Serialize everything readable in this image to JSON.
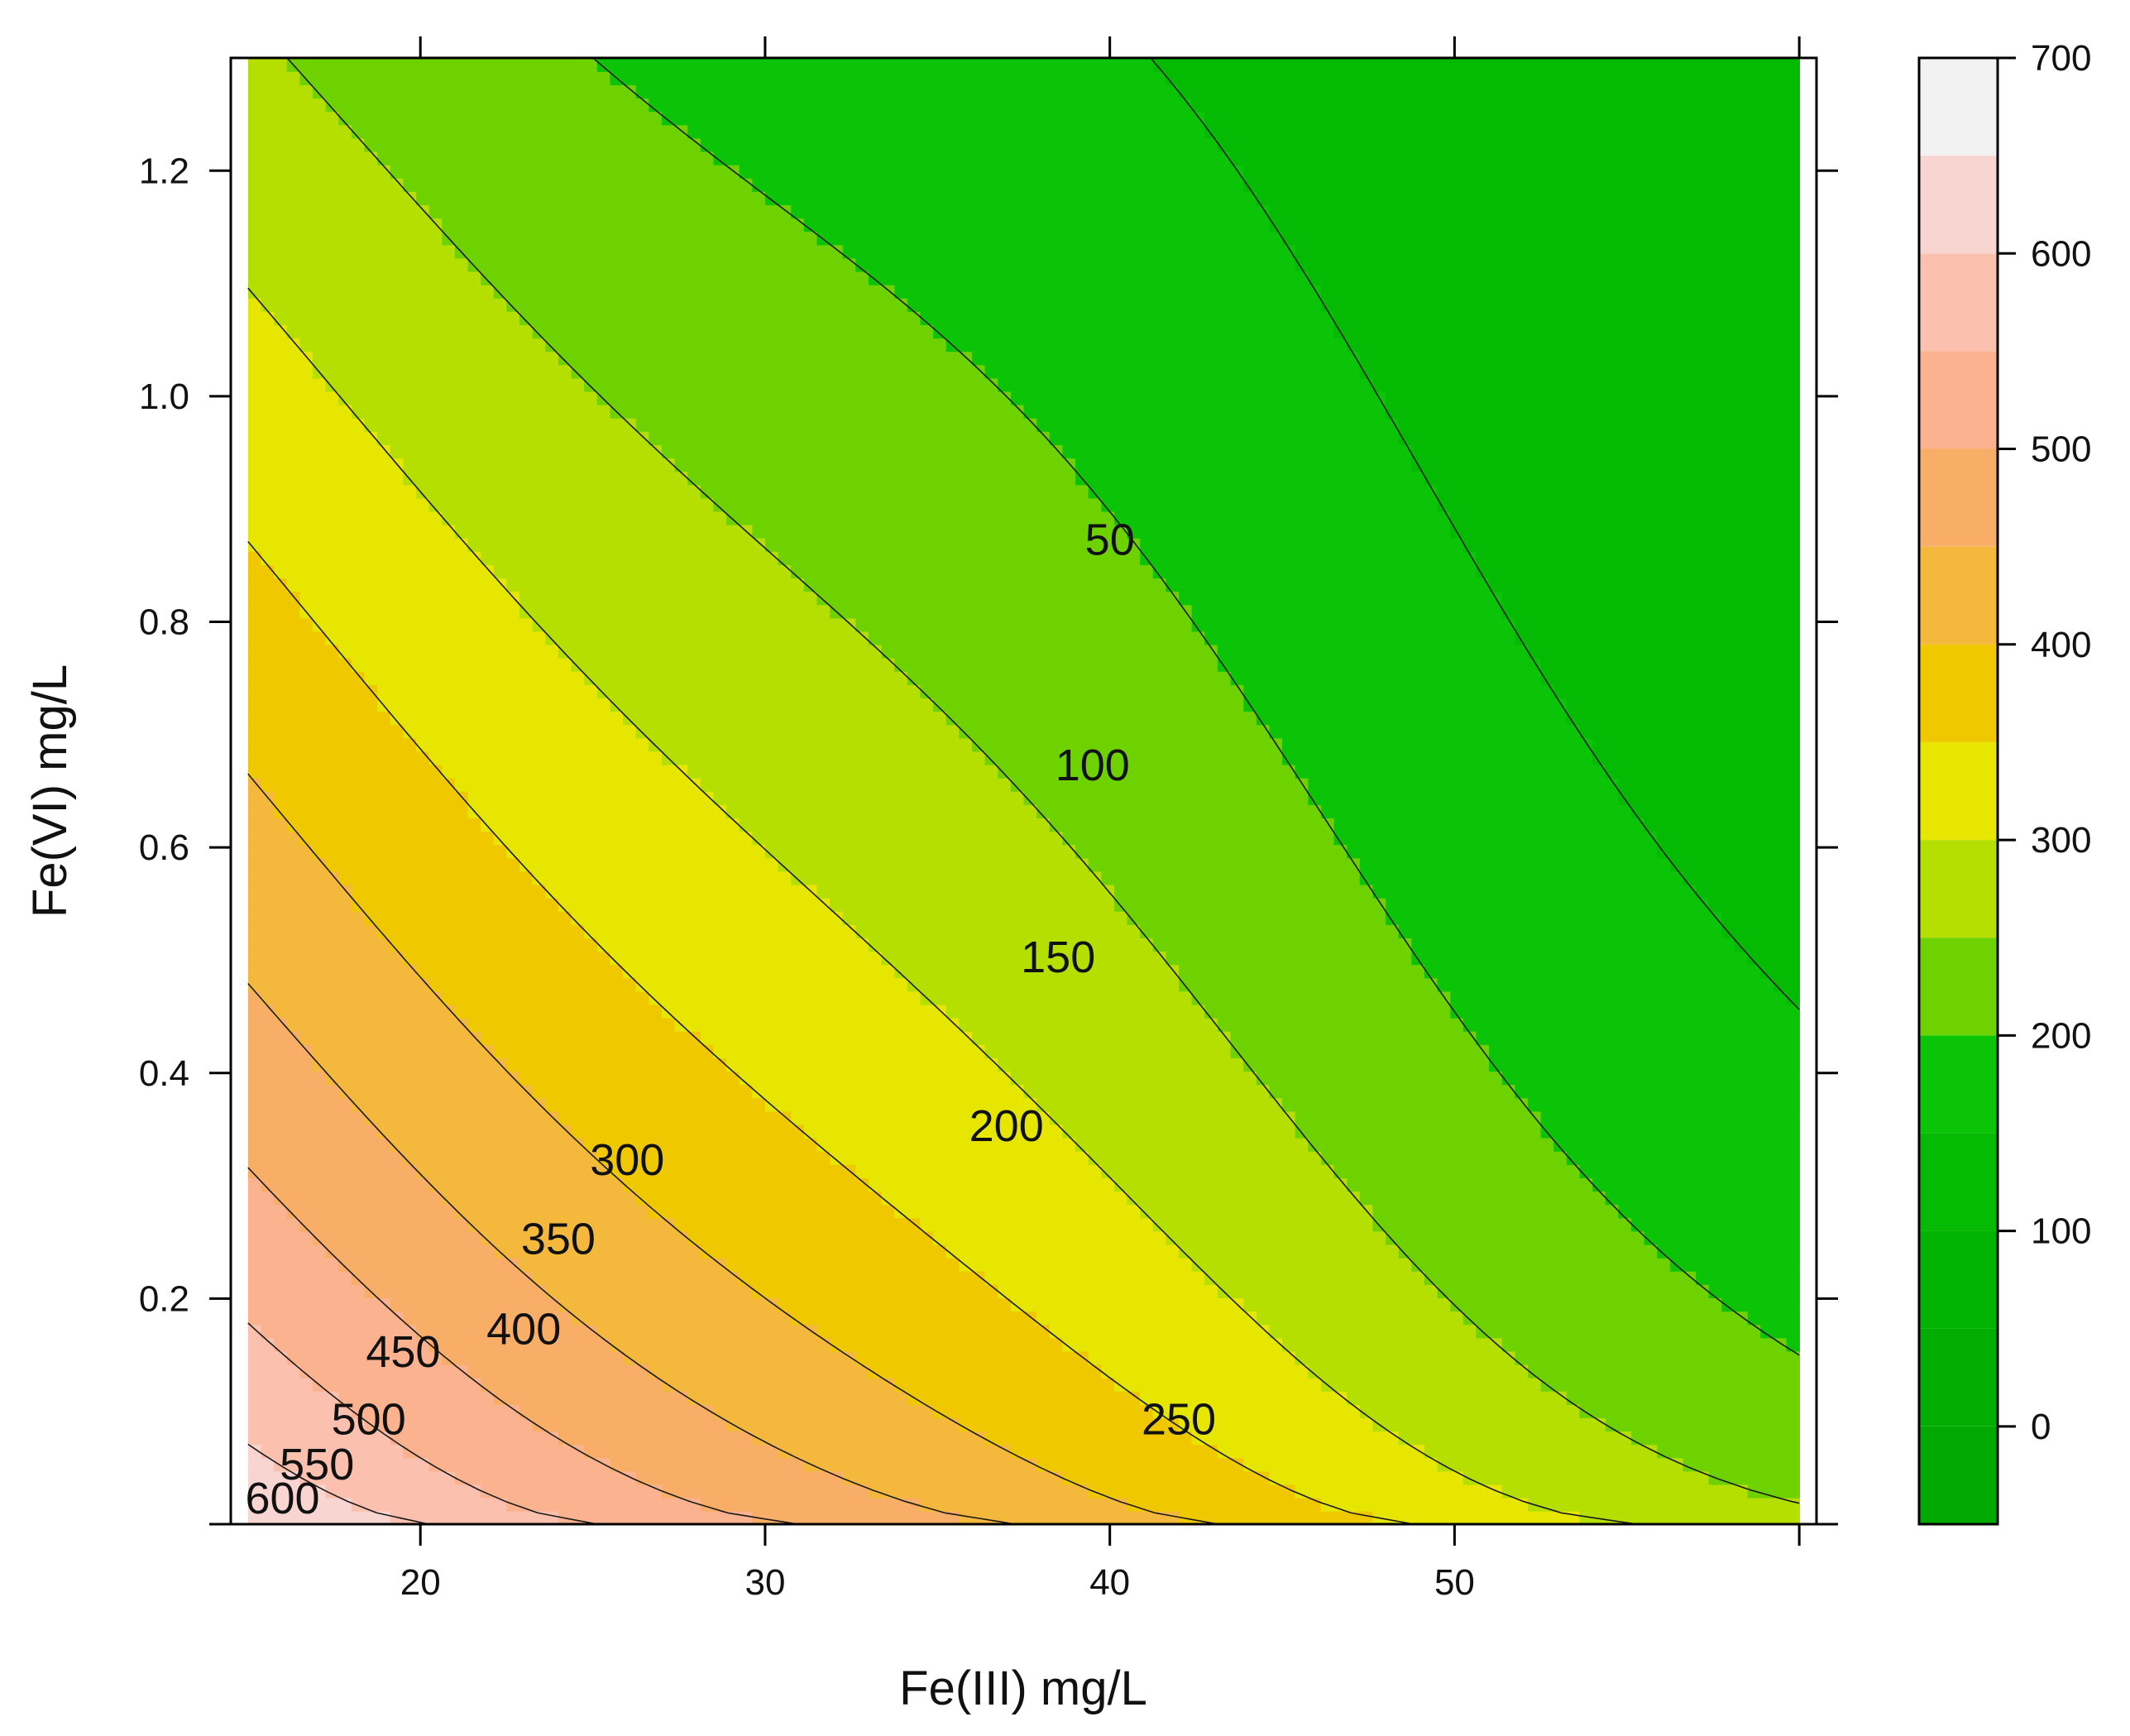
{
  "chart_data": {
    "type": "heatmap",
    "subtype": "filled contour (levelplot)",
    "title": "",
    "xlabel": "Fe(III) mg/L",
    "ylabel": "Fe(VI) mg/L",
    "xlim": [
      14.5,
      60.5
    ],
    "ylim": [
      0.0,
      1.3
    ],
    "x_ticks": [
      20,
      30,
      40,
      50
    ],
    "x_tick_labels": [
      "20",
      "30",
      "40",
      "50"
    ],
    "y_ticks": [
      0.2,
      0.4,
      0.6,
      0.8,
      1.0,
      1.2
    ],
    "y_tick_labels": [
      "0.2",
      "0.4",
      "0.6",
      "0.8",
      "1.0",
      "1.2"
    ],
    "data_extent": {
      "x": [
        15,
        60
      ],
      "y": [
        0.0,
        1.3
      ]
    },
    "grid": false,
    "contour_levels": [
      50,
      100,
      150,
      200,
      250,
      300,
      350,
      400,
      450,
      500,
      550,
      600
    ],
    "contour_labels": [
      {
        "text": "50",
        "x": 40.0,
        "y": 0.87
      },
      {
        "text": "100",
        "x": 39.5,
        "y": 0.67
      },
      {
        "text": "150",
        "x": 38.5,
        "y": 0.5
      },
      {
        "text": "200",
        "x": 37.0,
        "y": 0.35
      },
      {
        "text": "250",
        "x": 42.0,
        "y": 0.09
      },
      {
        "text": "300",
        "x": 26.0,
        "y": 0.32
      },
      {
        "text": "350",
        "x": 24.0,
        "y": 0.25
      },
      {
        "text": "400",
        "x": 23.0,
        "y": 0.17
      },
      {
        "text": "450",
        "x": 19.5,
        "y": 0.15
      },
      {
        "text": "500",
        "x": 18.5,
        "y": 0.09
      },
      {
        "text": "550",
        "x": 17.0,
        "y": 0.05
      },
      {
        "text": "600",
        "x": 16.0,
        "y": 0.02
      }
    ],
    "colorbar": {
      "range": [
        -50,
        700
      ],
      "ticks": [
        0,
        100,
        200,
        300,
        400,
        500,
        600,
        700
      ],
      "tick_labels": [
        "0",
        "100",
        "200",
        "300",
        "400",
        "500",
        "600",
        "700"
      ],
      "placement": "right",
      "bands": [
        {
          "from": -50,
          "to": 0,
          "color": "#00a800"
        },
        {
          "from": 0,
          "to": 50,
          "color": "#00ad00"
        },
        {
          "from": 50,
          "to": 100,
          "color": "#00b300"
        },
        {
          "from": 100,
          "to": 150,
          "color": "#04ba02"
        },
        {
          "from": 150,
          "to": 200,
          "color": "#0cc407"
        },
        {
          "from": 200,
          "to": 250,
          "color": "#6dd200"
        },
        {
          "from": 250,
          "to": 300,
          "color": "#b4df00"
        },
        {
          "from": 300,
          "to": 350,
          "color": "#e6e600"
        },
        {
          "from": 350,
          "to": 400,
          "color": "#f0c800"
        },
        {
          "from": 400,
          "to": 450,
          "color": "#f4b93c"
        },
        {
          "from": 450,
          "to": 500,
          "color": "#f8ae66"
        },
        {
          "from": 500,
          "to": 550,
          "color": "#fbb28e"
        },
        {
          "from": 550,
          "to": 600,
          "color": "#fcc0ae"
        },
        {
          "from": 600,
          "to": 650,
          "color": "#f8d5d0"
        },
        {
          "from": 650,
          "to": 700,
          "color": "#f2f2f2"
        }
      ]
    }
  }
}
